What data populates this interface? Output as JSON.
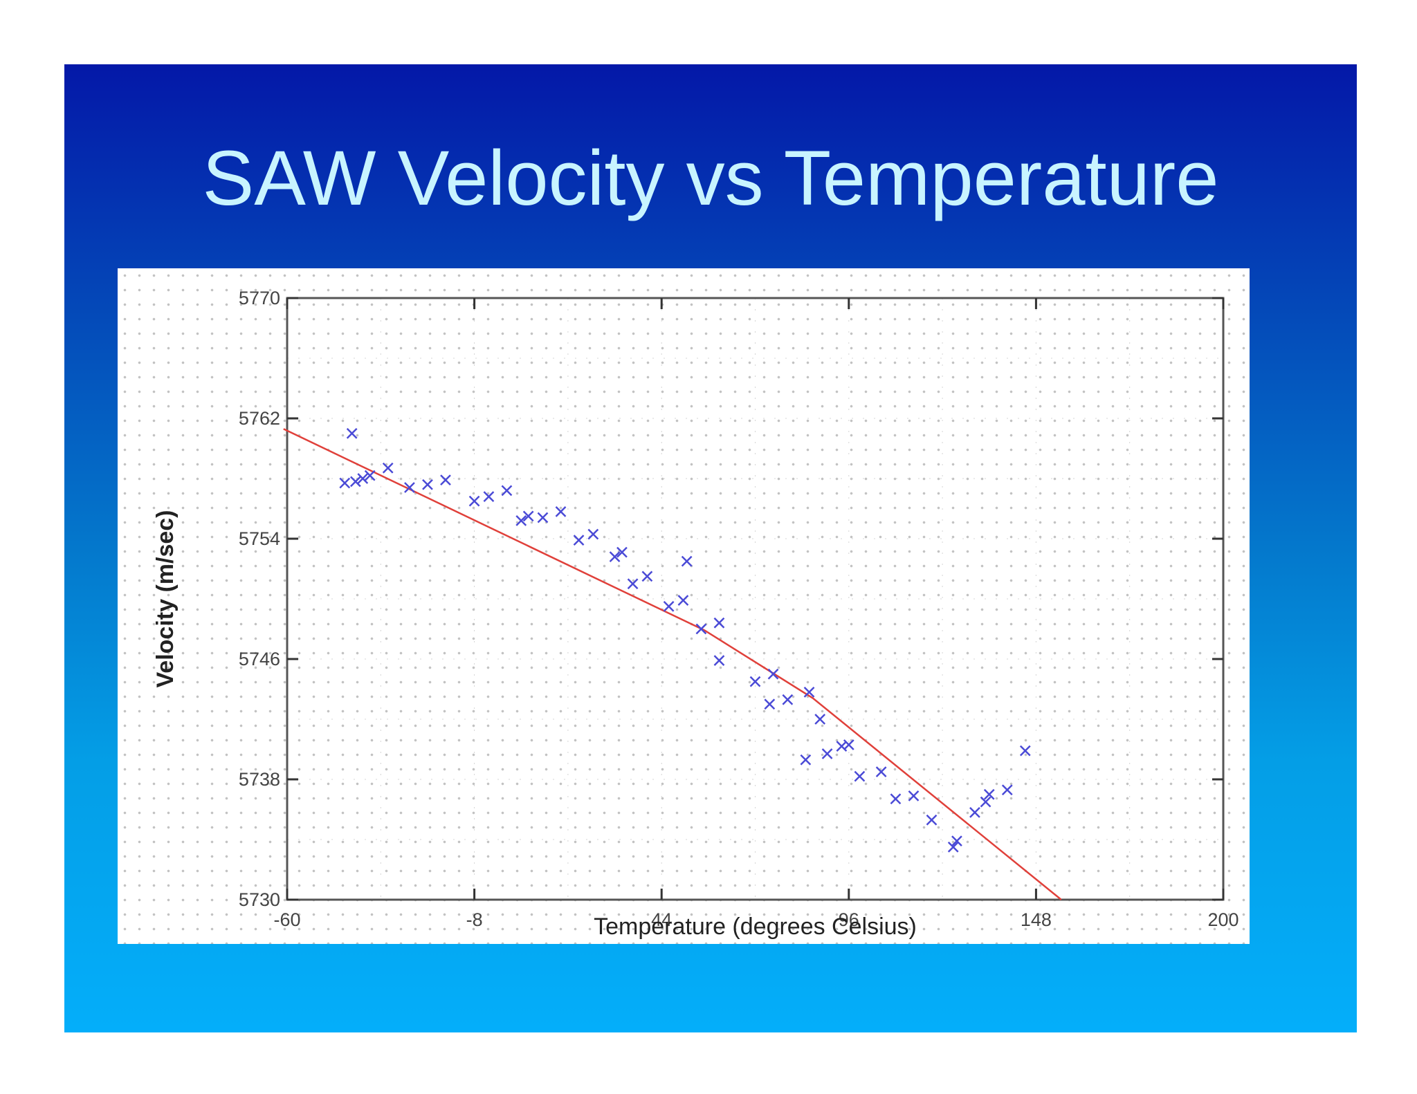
{
  "slide": {
    "title": "SAW Velocity vs Temperature"
  },
  "chart_data": {
    "type": "scatter",
    "title": "",
    "xlabel": "Temperature (degrees Celsius)",
    "ylabel": "Velocity (m/sec)",
    "xlim": [
      -60,
      200
    ],
    "ylim": [
      5730,
      5770
    ],
    "xticks": [
      -60,
      -8,
      44,
      96,
      148,
      200
    ],
    "xtick_labels": [
      "-60",
      "-8",
      "44",
      "96",
      "148",
      "200"
    ],
    "yticks": [
      5730,
      5738,
      5746,
      5754,
      5762,
      5770
    ],
    "ytick_labels": [
      "5730",
      "5738",
      "5746",
      "5754",
      "5762",
      "5770"
    ],
    "grid": true,
    "colors": {
      "points": "#4a4ad6",
      "fit": "#e0403a"
    },
    "series": [
      {
        "kind": "points",
        "marker": "x",
        "x": [
          -42,
          -44,
          -41,
          -39,
          -37,
          -32,
          -26,
          -21,
          -16,
          -8,
          -4,
          1,
          5,
          7,
          11,
          16,
          21,
          25,
          31,
          33,
          36,
          40,
          46,
          50,
          51,
          55,
          60,
          60,
          70,
          74,
          75,
          79,
          84,
          85,
          88,
          90,
          94,
          96,
          99,
          105,
          109,
          114,
          119,
          125,
          126,
          131,
          134,
          135,
          140,
          145
        ],
        "y": [
          5761,
          5757.7,
          5757.8,
          5758,
          5758.2,
          5758.7,
          5757.4,
          5757.6,
          5757.9,
          5756.5,
          5756.8,
          5757.2,
          5755.2,
          5755.5,
          5755.4,
          5755.8,
          5753.9,
          5754.3,
          5752.8,
          5753.1,
          5751.0,
          5751.5,
          5749.5,
          5749.9,
          5752.5,
          5748.0,
          5748.4,
          5745.9,
          5744.5,
          5743.0,
          5745.0,
          5743.3,
          5739.3,
          5743.8,
          5742.0,
          5739.7,
          5740.2,
          5740.3,
          5738.2,
          5738.5,
          5736.7,
          5736.9,
          5735.3,
          5733.5,
          5733.9,
          5735.8,
          5736.5,
          5737.0,
          5737.3,
          5739.9
        ]
      },
      {
        "kind": "fit",
        "x": [
          -61,
          56,
          86,
          155
        ],
        "y": [
          5761.3,
          5747.9,
          5743.4,
          5730
        ]
      }
    ]
  }
}
